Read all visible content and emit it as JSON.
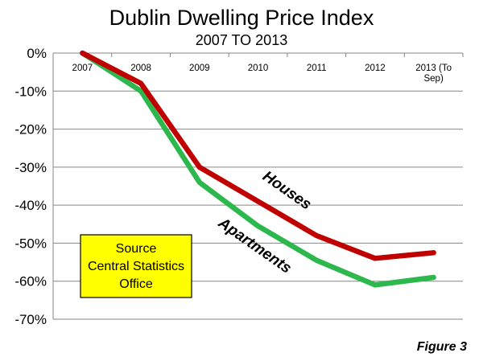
{
  "chart_data": {
    "type": "line",
    "title": "Dublin Dwelling Price Index",
    "subtitle": "2007 TO 2013",
    "categories": [
      "2007",
      "2008",
      "2009",
      "2010",
      "2011",
      "2012",
      "2013 (To Sep)"
    ],
    "category_lines": [
      [
        "2007"
      ],
      [
        "2008"
      ],
      [
        "2009"
      ],
      [
        "2010"
      ],
      [
        "2011"
      ],
      [
        "2012"
      ],
      [
        "2013 (To",
        "Sep)"
      ]
    ],
    "yticks": [
      "0%",
      "-10%",
      "-20%",
      "-30%",
      "-40%",
      "-50%",
      "-60%",
      "-70%"
    ],
    "ylim": [
      -70,
      0
    ],
    "grid": true,
    "series": [
      {
        "name": "Houses",
        "color": "#c00000",
        "values": [
          0,
          -8,
          -30,
          -39,
          -48,
          -54,
          -52.5
        ]
      },
      {
        "name": "Apartments",
        "color": "#2db84d",
        "values": [
          0,
          -10,
          -34,
          -45.5,
          -54.5,
          -61,
          -59
        ]
      }
    ],
    "annotation": "Source Central Statistics Office",
    "annotation_lines": [
      "Source",
      "Central Statistics",
      "Office"
    ],
    "annotation_color": "#ffff00",
    "figure_label": "Figure 3"
  }
}
